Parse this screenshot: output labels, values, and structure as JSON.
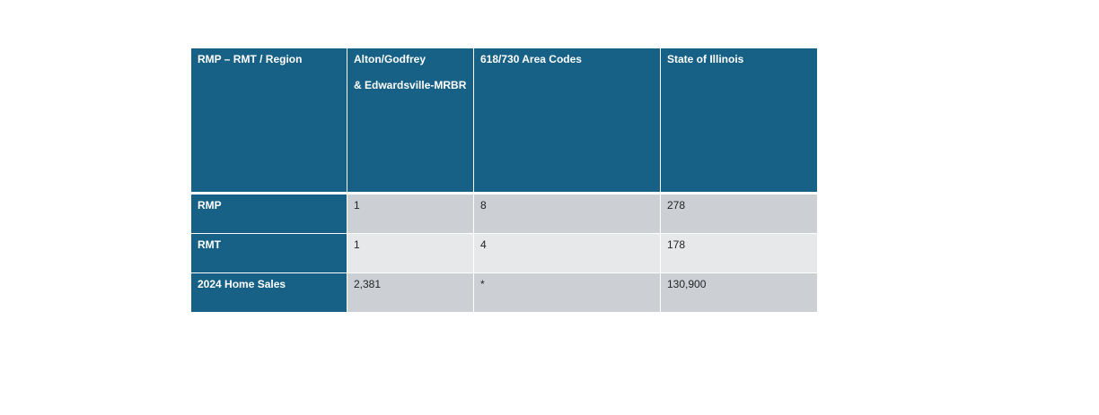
{
  "table": {
    "headers": [
      {
        "line1": "RMP – RMT / Region",
        "line2": ""
      },
      {
        "line1": "Alton/Godfrey",
        "line2": "& Edwardsville-MRBR"
      },
      {
        "line1": "618/730 Area Codes",
        "line2": ""
      },
      {
        "line1": "State of Illinois",
        "line2": ""
      }
    ],
    "rows": [
      {
        "label": "RMP",
        "values": [
          "1",
          "8",
          "278"
        ]
      },
      {
        "label": "RMT",
        "values": [
          "1",
          "4",
          "178"
        ]
      },
      {
        "label": "2024 Home Sales",
        "values": [
          "2,381",
          "*",
          "130,900"
        ]
      }
    ]
  },
  "colors": {
    "header_bg": "#176086",
    "row_odd_bg": "#ccd0d5",
    "row_even_bg": "#e6e8ea"
  }
}
